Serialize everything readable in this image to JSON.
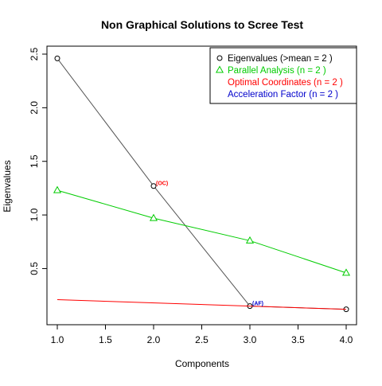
{
  "chart_data": {
    "type": "line",
    "title": "Non Graphical Solutions to Scree Test",
    "xlabel": "Components",
    "ylabel": "Eigenvalues",
    "xlim": [
      1,
      4
    ],
    "ylim": [
      0.11,
      2.5
    ],
    "x_ticks": [
      "1.0",
      "1.5",
      "2.0",
      "2.5",
      "3.0",
      "3.5",
      "4.0"
    ],
    "y_ticks": [
      "0.5",
      "1.0",
      "1.5",
      "2.0",
      "2.5"
    ],
    "grid": false,
    "legend_position": "top-right",
    "series": [
      {
        "name": "Eigenvalues (>mean =  2 )",
        "color": "#000000",
        "line_color": "#555555",
        "marker": "circle",
        "x": [
          1,
          2,
          3,
          4
        ],
        "y": [
          2.46,
          1.27,
          0.15,
          0.12
        ]
      },
      {
        "name": "Parallel Analysis (n =  2 )",
        "color": "#00cc00",
        "line_color": "#00cc00",
        "marker": "triangle",
        "x": [
          1,
          2,
          3,
          4
        ],
        "y": [
          1.23,
          0.97,
          0.76,
          0.46
        ]
      },
      {
        "name": "Optimal Coordinates (n =  2 )",
        "color": "#ff0000",
        "line_color": "#ff0000",
        "marker": "none",
        "x": [
          1,
          4
        ],
        "y": [
          0.21,
          0.12
        ]
      },
      {
        "name": "Acceleration Factor (n =  2 )",
        "color": "#0000cc",
        "line_color": "#0000cc",
        "marker": "none",
        "x": [],
        "y": []
      }
    ],
    "annotations": [
      {
        "text": "(OC)",
        "x": 2,
        "y": 1.27,
        "color": "#ff0000"
      },
      {
        "text": "(AF)",
        "x": 3,
        "y": 0.15,
        "color": "#0000cc"
      }
    ]
  }
}
